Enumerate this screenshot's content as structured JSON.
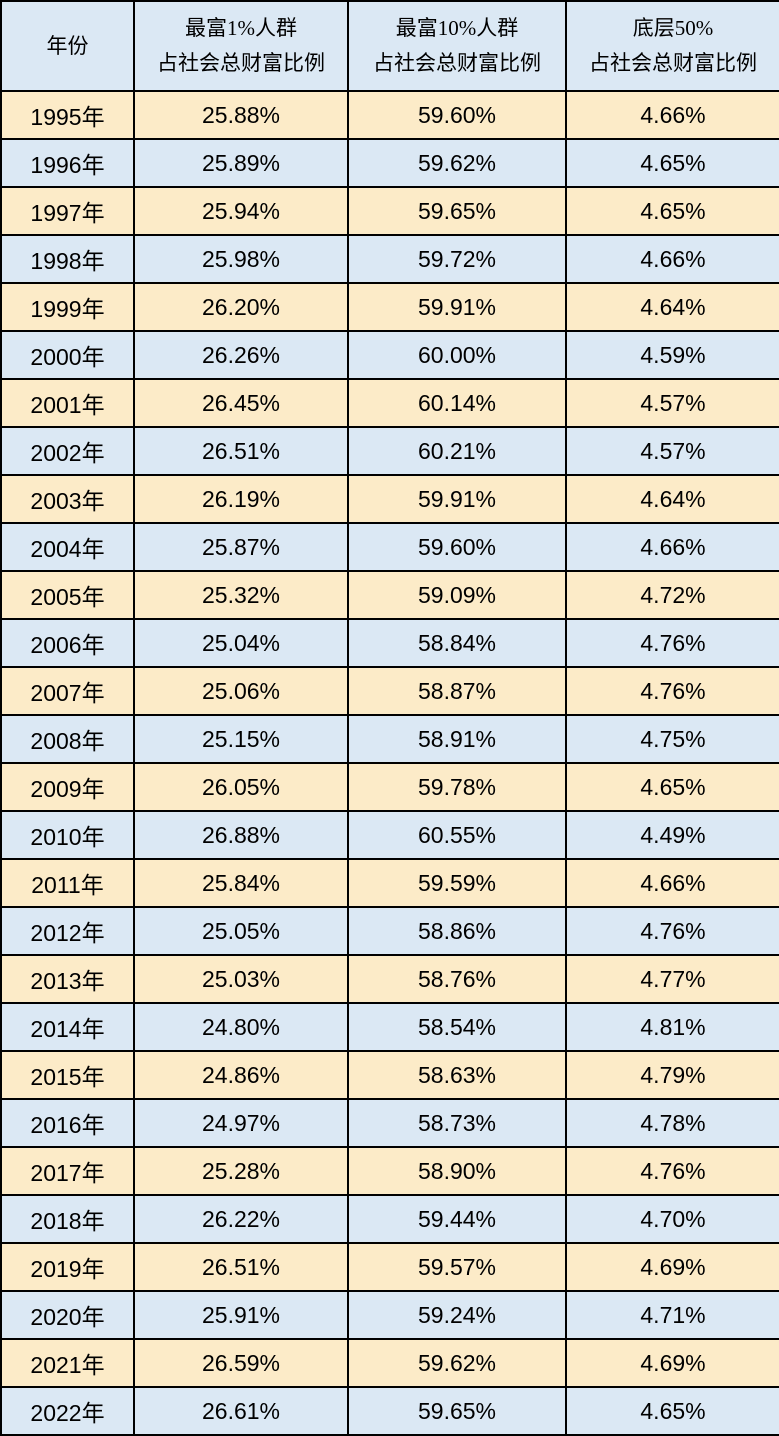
{
  "colors": {
    "row_yellow": "#fcebc8",
    "row_blue": "#dbe8f4",
    "header_background": "#dbe8f4",
    "border": "#000000",
    "text": "#000000"
  },
  "table": {
    "headers": [
      "年份",
      "最富1%人群\n占社会总财富比例",
      "最富10%人群\n占社会总财富比例",
      "底层50%\n占社会总财富比例"
    ]
  },
  "chart_data": {
    "type": "table",
    "columns": [
      "年份",
      "最富1%人群占社会总财富比例",
      "最富10%人群占社会总财富比例",
      "底层50%占社会总财富比例"
    ],
    "rows": [
      [
        "1995年",
        "25.88%",
        "59.60%",
        "4.66%"
      ],
      [
        "1996年",
        "25.89%",
        "59.62%",
        "4.65%"
      ],
      [
        "1997年",
        "25.94%",
        "59.65%",
        "4.65%"
      ],
      [
        "1998年",
        "25.98%",
        "59.72%",
        "4.66%"
      ],
      [
        "1999年",
        "26.20%",
        "59.91%",
        "4.64%"
      ],
      [
        "2000年",
        "26.26%",
        "60.00%",
        "4.59%"
      ],
      [
        "2001年",
        "26.45%",
        "60.14%",
        "4.57%"
      ],
      [
        "2002年",
        "26.51%",
        "60.21%",
        "4.57%"
      ],
      [
        "2003年",
        "26.19%",
        "59.91%",
        "4.64%"
      ],
      [
        "2004年",
        "25.87%",
        "59.60%",
        "4.66%"
      ],
      [
        "2005年",
        "25.32%",
        "59.09%",
        "4.72%"
      ],
      [
        "2006年",
        "25.04%",
        "58.84%",
        "4.76%"
      ],
      [
        "2007年",
        "25.06%",
        "58.87%",
        "4.76%"
      ],
      [
        "2008年",
        "25.15%",
        "58.91%",
        "4.75%"
      ],
      [
        "2009年",
        "26.05%",
        "59.78%",
        "4.65%"
      ],
      [
        "2010年",
        "26.88%",
        "60.55%",
        "4.49%"
      ],
      [
        "2011年",
        "25.84%",
        "59.59%",
        "4.66%"
      ],
      [
        "2012年",
        "25.05%",
        "58.86%",
        "4.76%"
      ],
      [
        "2013年",
        "25.03%",
        "58.76%",
        "4.77%"
      ],
      [
        "2014年",
        "24.80%",
        "58.54%",
        "4.81%"
      ],
      [
        "2015年",
        "24.86%",
        "58.63%",
        "4.79%"
      ],
      [
        "2016年",
        "24.97%",
        "58.73%",
        "4.78%"
      ],
      [
        "2017年",
        "25.28%",
        "58.90%",
        "4.76%"
      ],
      [
        "2018年",
        "26.22%",
        "59.44%",
        "4.70%"
      ],
      [
        "2019年",
        "26.51%",
        "59.57%",
        "4.69%"
      ],
      [
        "2020年",
        "25.91%",
        "59.24%",
        "4.71%"
      ],
      [
        "2021年",
        "26.59%",
        "59.62%",
        "4.69%"
      ],
      [
        "2022年",
        "26.61%",
        "59.65%",
        "4.65%"
      ]
    ]
  }
}
